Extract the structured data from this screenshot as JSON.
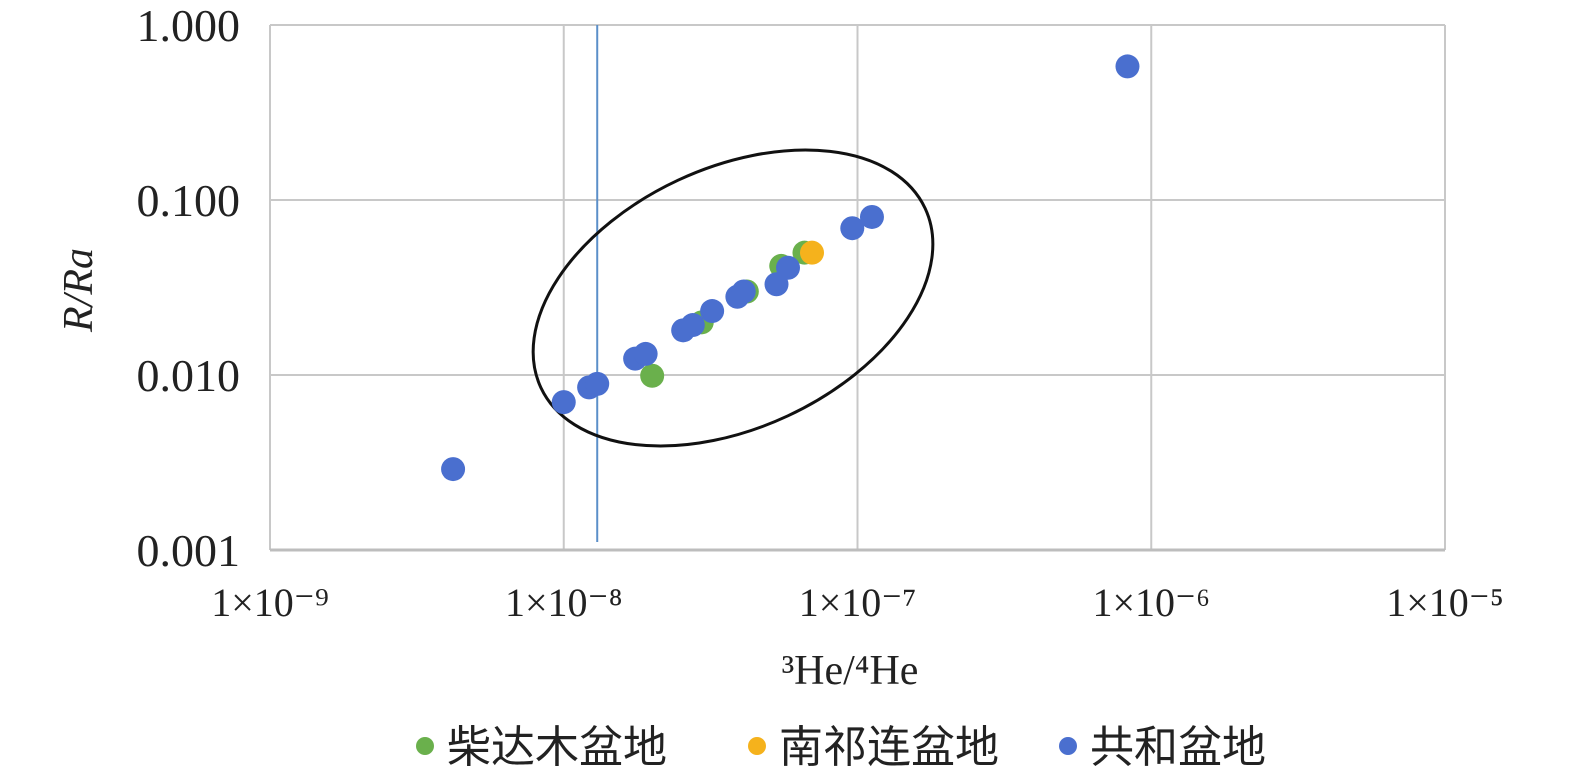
{
  "chart_data": {
    "type": "scatter",
    "xlabel": "³He/⁴He",
    "ylabel": "R/Ra",
    "x_scale": "log",
    "y_scale": "log",
    "xlim": [
      1e-09,
      1e-05
    ],
    "ylim": [
      0.001,
      1.0
    ],
    "x_ticks": [
      "1×10⁻⁹",
      "1×10⁻⁸",
      "1×10⁻⁷",
      "1×10⁻⁶",
      "1×10⁻⁵"
    ],
    "y_ticks": [
      "0.001",
      "0.010",
      "0.100",
      "1.000"
    ],
    "grid": true,
    "legend_position": "bottom",
    "reference_line": {
      "x": 1.3e-08,
      "color": "#5b8fc9"
    },
    "series": [
      {
        "name": "柴达木盆地",
        "color": "#6ab04c",
        "x": [
          2e-08,
          2.95e-08,
          4.2e-08,
          5.5e-08,
          6.6e-08
        ],
        "y": [
          0.0099,
          0.02,
          0.03,
          0.042,
          0.05
        ]
      },
      {
        "name": "南祁连盆地",
        "color": "#f5b21c",
        "x": [
          7e-08
        ],
        "y": [
          0.05
        ]
      },
      {
        "name": "共和盆地",
        "color": "#4a6fcf",
        "x": [
          4.2e-09,
          1e-08,
          1.22e-08,
          1.3e-08,
          1.75e-08,
          1.9e-08,
          2.55e-08,
          2.75e-08,
          3.2e-08,
          3.9e-08,
          4.1e-08,
          5.3e-08,
          5.8e-08,
          9.6e-08,
          1.12e-07,
          8.3e-07
        ],
        "y": [
          0.0029,
          0.007,
          0.0085,
          0.0089,
          0.0124,
          0.0132,
          0.018,
          0.0193,
          0.0232,
          0.028,
          0.03,
          0.033,
          0.041,
          0.069,
          0.08,
          0.58
        ]
      }
    ]
  }
}
